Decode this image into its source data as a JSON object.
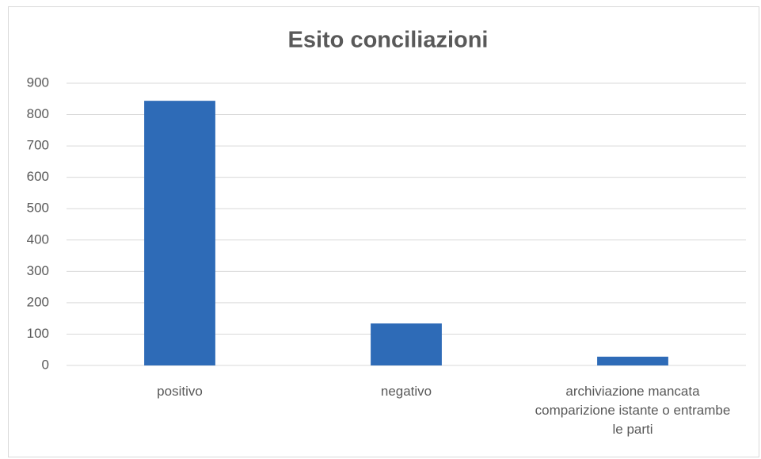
{
  "chart_data": {
    "type": "bar",
    "title": "Esito conciliazioni",
    "categories": [
      "positivo",
      "negativo",
      "archiviazione mancata comparizione istante o entrambe le parti"
    ],
    "values": [
      844,
      134,
      28
    ],
    "color": "#2e6bb7",
    "ylim": [
      0,
      900
    ],
    "yticks": [
      0,
      100,
      200,
      300,
      400,
      500,
      600,
      700,
      800,
      900
    ],
    "grid": true
  }
}
